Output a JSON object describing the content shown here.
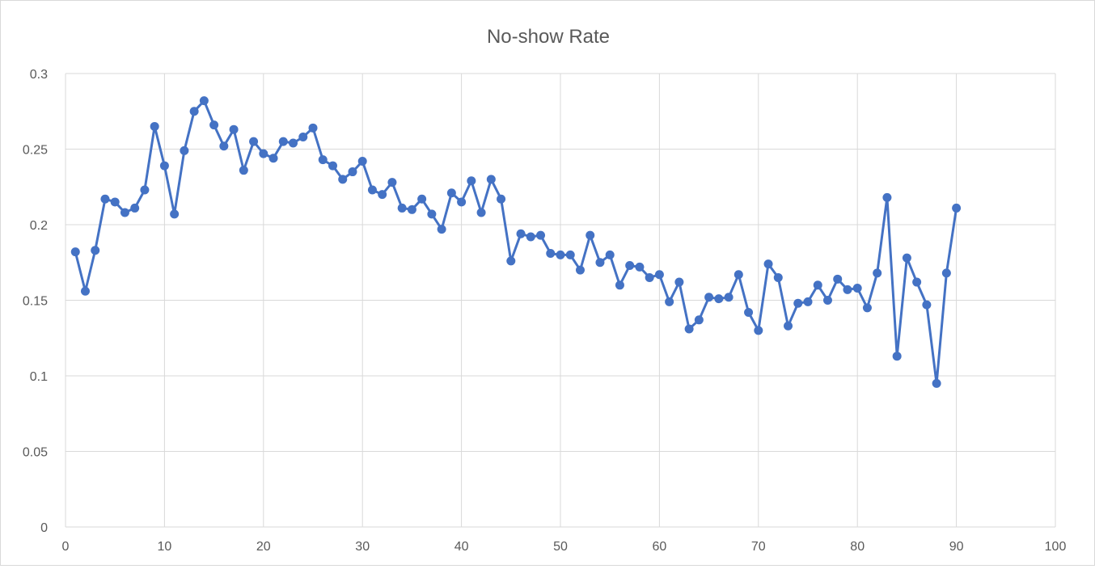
{
  "chart_data": {
    "type": "line",
    "title": "No-show Rate",
    "xlabel": "",
    "ylabel": "",
    "xlim": [
      0,
      100
    ],
    "ylim": [
      0,
      0.3
    ],
    "x_ticks": [
      0,
      10,
      20,
      30,
      40,
      50,
      60,
      70,
      80,
      90,
      100
    ],
    "y_ticks": [
      0,
      0.05,
      0.1,
      0.15,
      0.2,
      0.25,
      0.3
    ],
    "x_tick_labels": [
      "0",
      "10",
      "20",
      "30",
      "40",
      "50",
      "60",
      "70",
      "80",
      "90",
      "100"
    ],
    "y_tick_labels": [
      "0",
      "0.05",
      "0.1",
      "0.15",
      "0.2",
      "0.25",
      "0.3"
    ],
    "grid": true,
    "legend": "none",
    "series": [
      {
        "color": "#4472c4",
        "marker": "circle",
        "x": [
          1,
          2,
          3,
          4,
          5,
          6,
          7,
          8,
          9,
          10,
          11,
          12,
          13,
          14,
          15,
          16,
          17,
          18,
          19,
          20,
          21,
          22,
          23,
          24,
          25,
          26,
          27,
          28,
          29,
          30,
          31,
          32,
          33,
          34,
          35,
          36,
          37,
          38,
          39,
          40,
          41,
          42,
          43,
          44,
          45,
          46,
          47,
          48,
          49,
          50,
          51,
          52,
          53,
          54,
          55,
          56,
          57,
          58,
          59,
          60,
          61,
          62,
          63,
          64,
          65,
          66,
          67,
          68,
          69,
          70,
          71,
          72,
          73,
          74,
          75,
          76,
          77,
          78,
          79,
          80,
          81,
          82,
          83,
          84,
          85,
          86,
          87,
          88,
          89,
          90
        ],
        "y": [
          0.182,
          0.156,
          0.183,
          0.217,
          0.215,
          0.208,
          0.211,
          0.223,
          0.265,
          0.239,
          0.207,
          0.249,
          0.275,
          0.282,
          0.266,
          0.252,
          0.263,
          0.236,
          0.255,
          0.247,
          0.244,
          0.255,
          0.254,
          0.258,
          0.264,
          0.243,
          0.239,
          0.23,
          0.235,
          0.242,
          0.223,
          0.22,
          0.228,
          0.211,
          0.21,
          0.217,
          0.207,
          0.197,
          0.221,
          0.215,
          0.229,
          0.208,
          0.23,
          0.217,
          0.176,
          0.194,
          0.192,
          0.193,
          0.181,
          0.18,
          0.18,
          0.17,
          0.193,
          0.175,
          0.18,
          0.16,
          0.173,
          0.172,
          0.165,
          0.167,
          0.149,
          0.162,
          0.131,
          0.137,
          0.152,
          0.151,
          0.152,
          0.167,
          0.142,
          0.13,
          0.174,
          0.165,
          0.133,
          0.148,
          0.149,
          0.16,
          0.15,
          0.164,
          0.157,
          0.158,
          0.145,
          0.168,
          0.218,
          0.113,
          0.178,
          0.162,
          0.147,
          0.095,
          0.168,
          0.211
        ]
      }
    ]
  }
}
